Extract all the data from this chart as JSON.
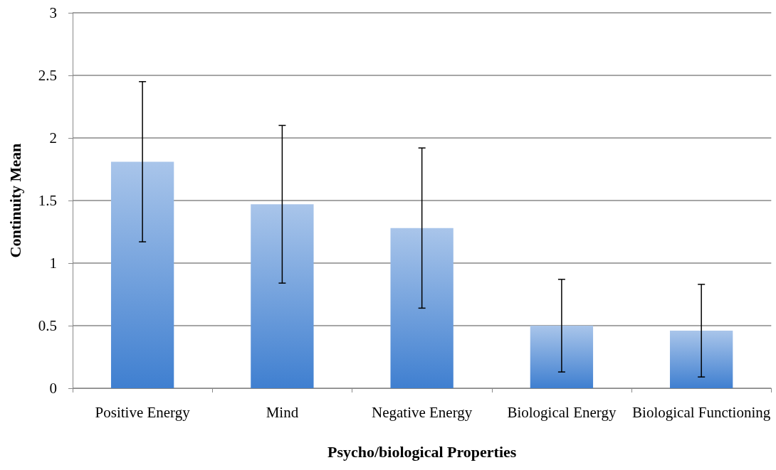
{
  "chart_data": {
    "type": "bar",
    "xlabel": "Psycho/biological Properties",
    "ylabel": "Continuity Mean",
    "categories": [
      "Positive Energy",
      "Mind",
      "Negative Energy",
      "Biological Energy",
      "Biological Functioning"
    ],
    "values": [
      1.81,
      1.47,
      1.28,
      0.5,
      0.46
    ],
    "errors": [
      0.64,
      0.63,
      0.64,
      0.37,
      0.37
    ],
    "color": "#3f7fd0",
    "ylim": [
      0,
      3
    ],
    "yticks": [
      0,
      0.5,
      1,
      1.5,
      2,
      2.5,
      3
    ],
    "grid": "y"
  }
}
